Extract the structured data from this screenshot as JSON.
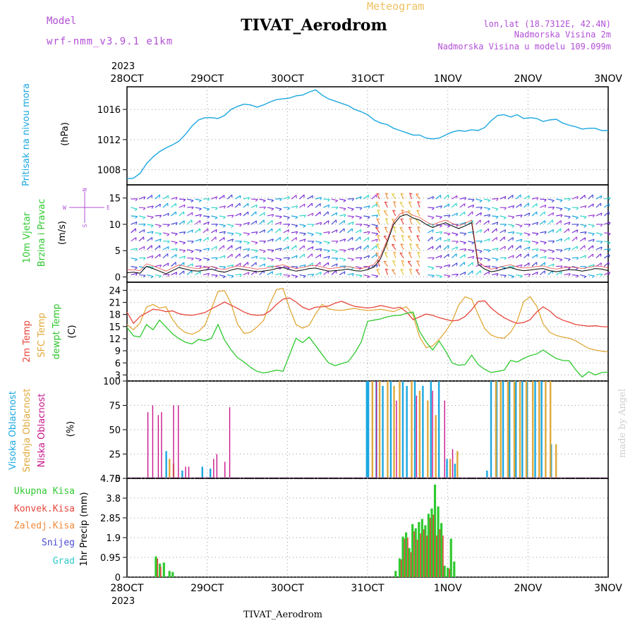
{
  "header": {
    "model_label": "Model",
    "model_name": "wrf-nmm_v3.9.1 e1km",
    "title": "TIVAT_Aerodrom",
    "subtitle": "Meteogram",
    "coords": "lon,lat (18.7312E, 42.4N)",
    "elevation": "Nadmorska Visina 2m",
    "model_elevation": "Nadmorska Visina u modelu 109.099m",
    "footer": "TIVAT_Aerodrom",
    "watermark": "made by Angel"
  },
  "colors": {
    "pressure": "#1ba7e0",
    "temp2m": "#e8463c",
    "sfc": "#e0a93a",
    "dewpt": "#2fc92f",
    "magenta": "#c23ec9",
    "violet": "#b24fd6",
    "green_label": "#2fc92f",
    "red_label": "#e8463c",
    "orange_label": "#f08a3c",
    "blue_label": "#4b4bd6",
    "cyan_label": "#2fc9c9",
    "pink": "#c8168c"
  },
  "time_axis": {
    "year": "2023",
    "ticks": [
      "28OCT",
      "29OCT",
      "30OCT",
      "31OCT",
      "1NOV",
      "2NOV",
      "3NOV"
    ]
  },
  "chart_data": [
    {
      "type": "line",
      "id": "pressure",
      "ylabel": [
        "Pritisak na nivou mora",
        "(hPa)"
      ],
      "yticks": [
        "1008",
        "1012",
        "1016"
      ],
      "ylim": [
        1006,
        1019
      ],
      "series": [
        {
          "values": [
            1006.8,
            1006.9,
            1007.5,
            1008.8,
            1009.7,
            1010.4,
            1010.9,
            1011.3,
            1011.8,
            1012.7,
            1013.8,
            1014.6,
            1014.9,
            1014.9,
            1014.8,
            1015.2,
            1016.0,
            1016.4,
            1016.7,
            1016.6,
            1016.3,
            1016.6,
            1017.0,
            1017.3,
            1017.4,
            1017.5,
            1017.8,
            1017.9,
            1018.3,
            1018.6,
            1017.9,
            1017.4,
            1017.1,
            1016.8,
            1016.5,
            1016.0,
            1015.7,
            1015.3,
            1014.6,
            1014.2,
            1014.0,
            1013.5,
            1013.2,
            1012.9,
            1012.6,
            1012.6,
            1012.2,
            1012.1,
            1012.2,
            1012.6,
            1013.0,
            1013.2,
            1013.1,
            1013.3,
            1013.2,
            1013.6,
            1014.5,
            1015.2,
            1015.3,
            1015.0,
            1015.3,
            1014.8,
            1014.9,
            1014.8,
            1014.4,
            1014.6,
            1014.7,
            1014.2,
            1013.9,
            1013.7,
            1013.4,
            1013.5,
            1013.5,
            1013.2,
            1013.2
          ]
        }
      ]
    },
    {
      "type": "line",
      "id": "wind",
      "ylabel": [
        "10m Vjetar",
        "Brzina i Pravac",
        "(m/s)"
      ],
      "compass": [
        "N",
        "S",
        "W",
        "E"
      ],
      "yticks": [
        "0",
        "5",
        "10",
        "15"
      ],
      "ylim": [
        -1,
        17.5
      ],
      "series": [
        {
          "values": [
            0.8,
            0.9,
            0.7,
            2.0,
            1.6,
            1.1,
            0.6,
            1.2,
            1.8,
            1.5,
            1.2,
            1.1,
            1.3,
            1.5,
            1.1,
            0.9,
            1.3,
            1.6,
            1.4,
            1.2,
            1.0,
            1.1,
            1.3,
            1.6,
            1.8,
            1.4,
            1.1,
            1.3,
            1.6,
            1.7,
            1.4,
            1.1,
            1.2,
            1.3,
            1.5,
            1.2,
            1.1,
            1.4,
            1.9,
            3.5,
            6.5,
            10.0,
            11.5,
            11.9,
            11.2,
            10.8,
            10.0,
            9.4,
            9.9,
            10.3,
            9.7,
            9.2,
            9.7,
            10.3,
            2.4,
            1.5,
            1.0,
            1.2,
            1.6,
            1.8,
            1.4,
            1.2,
            1.3,
            1.5,
            1.6,
            1.2,
            1.0,
            1.2,
            1.4,
            1.3,
            1.1,
            1.3,
            1.6,
            1.5,
            1.2
          ]
        }
      ]
    },
    {
      "type": "line",
      "id": "temperature",
      "ylabel": [
        "2m Temp",
        "SFC Temp",
        "dewpt Temp",
        "(C)"
      ],
      "yticks": [
        "3",
        "6",
        "9",
        "12",
        "15",
        "18",
        "21",
        "24"
      ],
      "ylim": [
        1.5,
        26
      ],
      "series": [
        {
          "values": [
            18.6,
            15.8,
            17.5,
            18.4,
            19.3,
            19.1,
            18.7,
            18.9,
            18.2,
            17.9,
            17.8,
            18.1,
            18.5,
            19.4,
            20.2,
            21.1,
            20.3,
            19.5,
            18.6,
            18.0,
            17.8,
            17.9,
            18.9,
            20.5,
            21.8,
            22.1,
            21.1,
            19.8,
            19.2,
            19.8,
            19.9,
            20.1,
            20.8,
            21.3,
            20.6,
            20.0,
            19.8,
            19.6,
            19.8,
            20.2,
            19.9,
            19.5,
            19.8,
            18.6,
            16.7,
            17.4,
            18.1,
            17.8,
            17.2,
            16.8,
            16.4,
            16.6,
            17.5,
            19.2,
            21.2,
            21.4,
            19.6,
            18.3,
            17.2,
            16.4,
            15.8,
            16.0,
            16.7,
            18.6,
            19.9,
            18.9,
            17.4,
            16.6,
            16.1,
            15.5,
            15.3,
            15.1,
            15.2,
            15.0,
            14.9
          ]
        },
        {
          "values": [
            15.5,
            14.2,
            15.9,
            19.8,
            20.5,
            19.6,
            19.9,
            16.8,
            14.7,
            13.5,
            13.1,
            13.8,
            15.4,
            19.5,
            23.7,
            23.9,
            20.7,
            15.6,
            13.3,
            13.6,
            14.9,
            16.5,
            20.8,
            24.2,
            24.5,
            19.5,
            15.5,
            14.6,
            15.3,
            18.1,
            20.5,
            19.4,
            19.1,
            19.0,
            19.3,
            19.5,
            19.2,
            19.0,
            19.1,
            19.3,
            19.0,
            18.7,
            19.4,
            19.9,
            17.8,
            12.4,
            9.8,
            10.2,
            11.8,
            13.8,
            16.3,
            20.3,
            22.4,
            21.8,
            18.0,
            14.5,
            12.9,
            12.3,
            12.1,
            13.6,
            16.4,
            21.2,
            22.4,
            20.1,
            15.7,
            13.6,
            12.8,
            12.4,
            12.1,
            11.5,
            10.5,
            9.6,
            9.2,
            8.9,
            8.7
          ]
        },
        {
          "values": [
            14.8,
            12.7,
            12.4,
            15.5,
            14.2,
            16.6,
            14.9,
            13.2,
            12.0,
            11.1,
            10.7,
            11.8,
            11.5,
            12.1,
            15.5,
            11.7,
            9.2,
            7.3,
            6.2,
            4.9,
            3.9,
            3.5,
            3.8,
            4.2,
            3.9,
            8.0,
            12.1,
            11.0,
            12.4,
            10.3,
            8.1,
            6.0,
            5.3,
            5.8,
            6.3,
            8.4,
            11.1,
            16.3,
            16.6,
            16.9,
            17.4,
            17.7,
            17.8,
            18.3,
            18.6,
            13.8,
            11.2,
            9.2,
            11.4,
            8.9,
            6.0,
            5.4,
            5.6,
            7.9,
            5.6,
            4.4,
            3.6,
            3.9,
            4.2,
            6.6,
            6.2,
            7.1,
            7.8,
            8.2,
            9.2,
            8.1,
            7.1,
            6.6,
            6.5,
            4.3,
            2.5,
            3.8,
            3.0,
            3.6,
            3.7
          ]
        }
      ]
    },
    {
      "type": "bar",
      "id": "clouds",
      "ylabel": [
        "Visoka Oblacnost",
        "Srednja Oblacnost",
        "Niska Oblacnost",
        "(%)"
      ],
      "yticks": [
        "0",
        "25",
        "50",
        "75",
        "100"
      ],
      "ylim": [
        0,
        100
      ],
      "series": [
        {
          "name": "Visoka Oblacnost",
          "values": [
            [
              28.5,
              28
            ],
            [
              28.7,
              8
            ],
            [
              28.95,
              12
            ],
            [
              29.05,
              10
            ],
            [
              31.0,
              100
            ],
            [
              31.02,
              100
            ],
            [
              31.12,
              100
            ],
            [
              31.2,
              95
            ],
            [
              31.3,
              100
            ],
            [
              31.45,
              100
            ],
            [
              31.5,
              95
            ],
            [
              31.6,
              100
            ],
            [
              31.7,
              95
            ],
            [
              31.8,
              100
            ],
            [
              31.9,
              100
            ],
            [
              32.0,
              20
            ],
            [
              32.1,
              15
            ],
            [
              32.5,
              8
            ],
            [
              32.55,
              100
            ],
            [
              32.62,
              100
            ],
            [
              32.7,
              100
            ],
            [
              32.78,
              100
            ],
            [
              32.86,
              100
            ],
            [
              32.94,
              100
            ],
            [
              33.0,
              100
            ],
            [
              33.1,
              100
            ],
            [
              33.18,
              100
            ],
            [
              33.3,
              35
            ]
          ]
        },
        {
          "name": "Srednja Oblacnost",
          "values": [
            [
              28.53,
              20
            ],
            [
              28.58,
              15
            ],
            [
              31.06,
              100
            ],
            [
              31.15,
              100
            ],
            [
              31.25,
              100
            ],
            [
              31.33,
              95
            ],
            [
              31.4,
              100
            ],
            [
              31.55,
              100
            ],
            [
              31.65,
              90
            ],
            [
              31.75,
              80
            ],
            [
              31.85,
              65
            ],
            [
              32.03,
              20
            ],
            [
              32.12,
              28
            ],
            [
              32.6,
              100
            ],
            [
              32.66,
              100
            ],
            [
              32.75,
              100
            ],
            [
              32.83,
              100
            ],
            [
              32.9,
              100
            ],
            [
              32.98,
              100
            ],
            [
              33.06,
              100
            ],
            [
              33.14,
              100
            ],
            [
              33.22,
              100
            ],
            [
              33.28,
              100
            ],
            [
              33.35,
              35
            ]
          ]
        },
        {
          "name": "Niska Oblacnost",
          "values": [
            [
              28.25,
              68
            ],
            [
              28.31,
              75
            ],
            [
              28.38,
              65
            ],
            [
              28.42,
              68
            ],
            [
              28.57,
              75
            ],
            [
              28.63,
              75
            ],
            [
              28.72,
              12
            ],
            [
              28.76,
              12
            ],
            [
              29.07,
              20
            ],
            [
              29.11,
              25
            ],
            [
              29.21,
              17
            ],
            [
              29.27,
              73
            ],
            [
              31.1,
              100
            ],
            [
              31.35,
              80
            ],
            [
              31.6,
              85
            ],
            [
              31.8,
              90
            ],
            [
              31.95,
              80
            ],
            [
              32.05,
              30
            ]
          ]
        }
      ]
    },
    {
      "type": "bar",
      "id": "precip",
      "ylabel": [
        "1hr Precip (mm)"
      ],
      "yticks": [
        "0",
        "0.95",
        "1.9",
        "2.85",
        "3.8",
        "4.75"
      ],
      "ylim": [
        0,
        4.75
      ],
      "legend": [
        "Ukupna Kisa",
        "Konvek.Kisa",
        "Zaledj.Kisa",
        "Snijeg",
        "Grad"
      ],
      "series": [
        {
          "name": "Ukupna Kisa",
          "values": [
            [
              28.36,
              1.0
            ],
            [
              28.41,
              0.65
            ],
            [
              28.46,
              0.7
            ],
            [
              28.53,
              0.3
            ],
            [
              28.57,
              0.25
            ],
            [
              31.35,
              0.3
            ],
            [
              31.4,
              0.9
            ],
            [
              31.44,
              1.95
            ],
            [
              31.48,
              2.15
            ],
            [
              31.52,
              1.4
            ],
            [
              31.56,
              2.55
            ],
            [
              31.6,
              2.35
            ],
            [
              31.64,
              2.65
            ],
            [
              31.68,
              2.8
            ],
            [
              31.72,
              2.5
            ],
            [
              31.76,
              3.05
            ],
            [
              31.8,
              3.3
            ],
            [
              31.84,
              4.45
            ],
            [
              31.88,
              3.4
            ],
            [
              31.92,
              2.6
            ],
            [
              31.96,
              0.55
            ],
            [
              32.0,
              0.45
            ],
            [
              32.04,
              1.85
            ],
            [
              32.08,
              0.75
            ]
          ]
        },
        {
          "name": "Konvek.Kisa",
          "values": [
            [
              28.38,
              0.9
            ],
            [
              28.42,
              0.5
            ],
            [
              31.42,
              0.85
            ],
            [
              31.46,
              1.85
            ],
            [
              31.5,
              1.9
            ],
            [
              31.54,
              1.2
            ],
            [
              31.58,
              2.2
            ],
            [
              31.62,
              1.8
            ],
            [
              31.66,
              2.1
            ],
            [
              31.7,
              2.3
            ],
            [
              31.74,
              2.0
            ],
            [
              31.78,
              2.85
            ],
            [
              31.82,
              3.0
            ],
            [
              31.86,
              2.0
            ],
            [
              31.9,
              2.3
            ],
            [
              31.94,
              2.0
            ],
            [
              32.02,
              0.4
            ]
          ]
        },
        {
          "name": "Zaledj.Kisa",
          "values": []
        },
        {
          "name": "Snijeg",
          "values": []
        },
        {
          "name": "Grad",
          "values": []
        }
      ]
    }
  ]
}
